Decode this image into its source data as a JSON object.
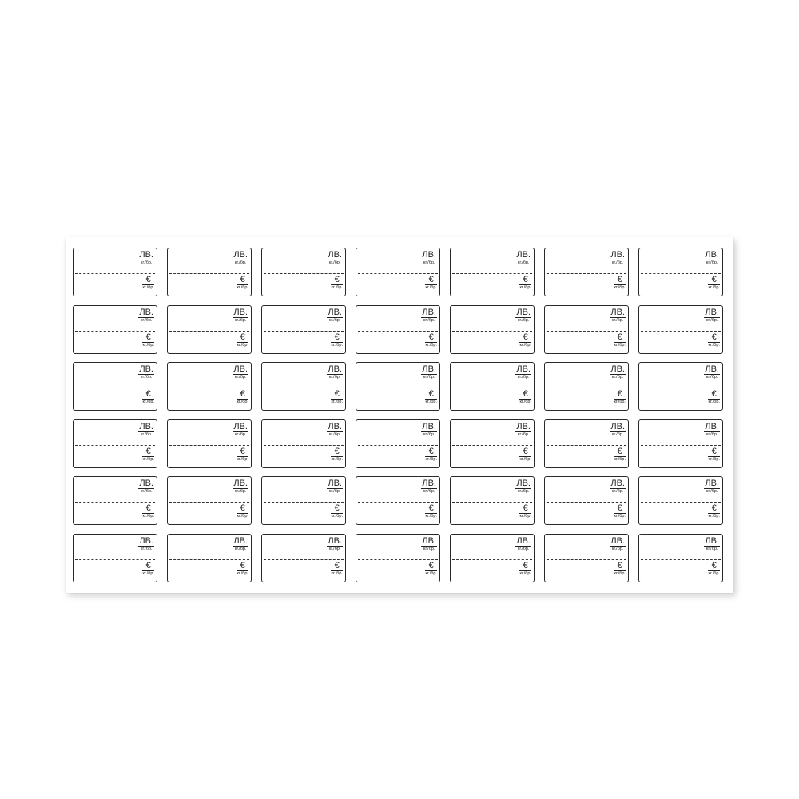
{
  "sheet": {
    "columns": 7,
    "rows": 6,
    "label": {
      "top_currency": "ЛВ.",
      "top_unit": "кг./бр.",
      "bottom_currency": "€",
      "bottom_unit": "кг./бр."
    }
  }
}
